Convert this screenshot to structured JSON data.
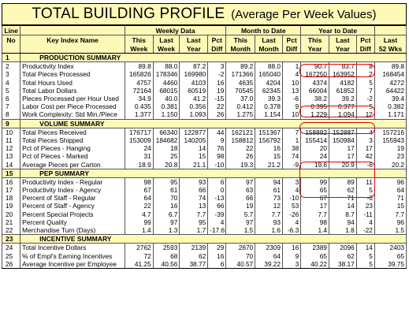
{
  "title": {
    "main": "TOTAL BUILDING PROFILE",
    "sub": "(Average Per Week Values)"
  },
  "headers": {
    "line_no_1": "Line",
    "line_no_2": "No",
    "key_index_name": "Key Index Name",
    "weekly_data": "Weekly Data",
    "month_to_date": "Month to Date",
    "year_to_date": "Year to Date",
    "this_1": "This",
    "this_week_2": "Week",
    "last_1": "Last",
    "last_week_2": "Week",
    "last_year_2": "Year",
    "pct_1": "Pct",
    "pct_diff_2": "Diff",
    "this_month_2": "Month",
    "this_year_2": "Year",
    "last_52_1": "Last",
    "last_52_2": "52 Wks"
  },
  "rows": [
    {
      "type": "section",
      "line": "1",
      "name": "PRODUCTION SUMMARY"
    },
    {
      "type": "data",
      "line": "2",
      "name": "Productivity Index",
      "v": [
        "89.8",
        "88.0",
        "87.2",
        "3",
        "89.2",
        "88.0",
        "1",
        "90.7",
        "83.7",
        "8",
        "89.8"
      ]
    },
    {
      "type": "data",
      "line": "3",
      "name": "Total Pieces Processed",
      "v": [
        "165826",
        "178346",
        "169980",
        "-2",
        "171366",
        "165040",
        "4",
        "167250",
        "163952",
        "2",
        "168454"
      ]
    },
    {
      "type": "data",
      "line": "4",
      "name": "Total Hours Used",
      "v": [
        "4757",
        "4460",
        "4103",
        "16",
        "4635",
        "4204",
        "10",
        "4374",
        "4182",
        "5",
        "4272"
      ]
    },
    {
      "type": "data",
      "line": "5",
      "name": "Total Labor Dollars",
      "v": [
        "72164",
        "68015",
        "60519",
        "19",
        "70545",
        "62345",
        "13",
        "66004",
        "61852",
        "7",
        "64422"
      ]
    },
    {
      "type": "data",
      "line": "6",
      "name": "Pieces Processed per Hour Used",
      "v": [
        "34.9",
        "40.0",
        "41.2",
        "-15",
        "37.0",
        "39.3",
        "-6",
        "38.2",
        "39.2",
        "-2",
        "39.4"
      ]
    },
    {
      "type": "data",
      "line": "7",
      "name": "Labor Cost per Piece Processed",
      "v": [
        "0.435",
        "0.381",
        "0.356",
        "22",
        "0.412",
        "0.378",
        "9",
        "0.395",
        "0.377",
        "5",
        "0.382"
      ]
    },
    {
      "type": "data",
      "line": "8",
      "name": "Work Complexity: Std Min./Piece",
      "v": [
        "1.377",
        "1.150",
        "1.093",
        "26",
        "1.275",
        "1.154",
        "10",
        "1.229",
        "1.094",
        "12",
        "1.171"
      ]
    },
    {
      "type": "section",
      "line": "9",
      "name": "VOLUME SUMMARY"
    },
    {
      "type": "data",
      "line": "10",
      "name": "Total Pieces Received",
      "v": [
        "176717",
        "66340",
        "122877",
        "44",
        "162121",
        "151367",
        "7",
        "158882",
        "152887",
        "4",
        "157216"
      ]
    },
    {
      "type": "data",
      "line": "11",
      "name": "Total Pieces Shipped",
      "v": [
        "153009",
        "184682",
        "140205",
        "9",
        "158812",
        "156792",
        "1",
        "155414",
        "150984",
        "3",
        "155943"
      ]
    },
    {
      "type": "data",
      "line": "12",
      "name": "Pct of Pieces - Hanging",
      "v": [
        "24",
        "18",
        "14",
        "76",
        "22",
        "16",
        "38",
        "20",
        "17",
        "17",
        "19"
      ]
    },
    {
      "type": "data",
      "line": "13",
      "name": "Pct of Pieces - Marked",
      "v": [
        "31",
        "25",
        "15",
        "98",
        "26",
        "15",
        "74",
        "24",
        "17",
        "42",
        "23"
      ]
    },
    {
      "type": "data",
      "line": "14",
      "name": "Average Pieces per Carton",
      "v": [
        "18.9",
        "20.8",
        "21.1",
        "-10",
        "19.3",
        "21.2",
        "-9",
        "19.6",
        "20.9",
        "-6",
        "20.2"
      ]
    },
    {
      "type": "section",
      "line": "15",
      "name": "PEP SUMMARY"
    },
    {
      "type": "data",
      "line": "16",
      "name": "Productivity Index - Regular",
      "v": [
        "98",
        "95",
        "93",
        "6",
        "97",
        "94",
        "3",
        "99",
        "89",
        "11",
        "96"
      ]
    },
    {
      "type": "data",
      "line": "17",
      "name": "Productivity Index - Agency",
      "v": [
        "67",
        "61",
        "66",
        "0",
        "63",
        "61",
        "4",
        "65",
        "62",
        "5",
        "64"
      ]
    },
    {
      "type": "data",
      "line": "18",
      "name": "Percent of Staff - Regular",
      "v": [
        "64",
        "70",
        "74",
        "-13",
        "66",
        "73",
        "-10",
        "67",
        "71",
        "-6",
        "71"
      ]
    },
    {
      "type": "data",
      "line": "19",
      "name": "Percent of Staff - Agency",
      "v": [
        "22",
        "16",
        "13",
        "66",
        "19",
        "12",
        "53",
        "17",
        "14",
        "23",
        "15"
      ]
    },
    {
      "type": "data",
      "line": "20",
      "name": "Percent Special Projects",
      "v": [
        "4.7",
        "6.7",
        "7.7",
        "-39",
        "5.7",
        "7.7",
        "-26",
        "7.7",
        "8.7",
        "-11",
        "7.7"
      ]
    },
    {
      "type": "data",
      "line": "21",
      "name": "Percent Quality",
      "v": [
        "99",
        "97",
        "95",
        "4",
        "97",
        "93",
        "4",
        "98",
        "94",
        "4",
        "96"
      ]
    },
    {
      "type": "data",
      "line": "22",
      "name": "Merchandise Turn (Days)",
      "v": [
        "1.4",
        "1.3",
        "1.7",
        "-17.6",
        "1.5",
        "1.6",
        "-6.3",
        "1.4",
        "1.8",
        "-22",
        "1.5"
      ]
    },
    {
      "type": "section",
      "line": "23",
      "name": "INCENTIVE SUMMARY"
    },
    {
      "type": "data",
      "line": "24",
      "name": "Total Incentive Dollars",
      "v": [
        "2762",
        "2593",
        "2139",
        "29",
        "2670",
        "2309",
        "16",
        "2389",
        "2096",
        "14",
        "2403"
      ]
    },
    {
      "type": "data",
      "line": "25",
      "name": "% of Empl's Earning Incentives",
      "v": [
        "72",
        "68",
        "62",
        "16",
        "70",
        "64",
        "9",
        "65",
        "62",
        "5",
        "65"
      ]
    },
    {
      "type": "data",
      "line": "26",
      "name": "Average Incentive per Employee",
      "v": [
        "41.25",
        "40.56",
        "38.77",
        "6",
        "40.57",
        "39.22",
        "3",
        "40.22",
        "38.17",
        "5",
        "39.75"
      ]
    }
  ],
  "highlight_color": "#e00000",
  "header_fill_color": "#fff9b8"
}
